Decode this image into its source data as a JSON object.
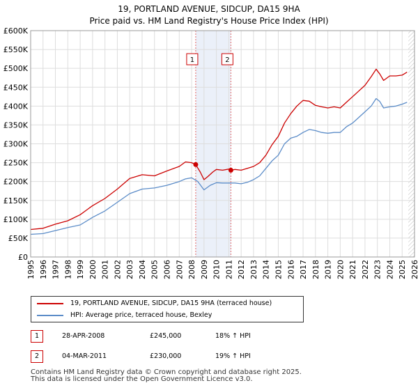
{
  "title_line1": "19, PORTLAND AVENUE, SIDCUP, DA15 9HA",
  "title_line2": "Price paid vs. HM Land Registry's House Price Index (HPI)",
  "chart_data": {
    "type": "line",
    "title": "19, PORTLAND AVENUE, SIDCUP, DA15 9HA — Price paid vs. HM Land Registry's House Price Index (HPI)",
    "xlim": [
      1995,
      2026
    ],
    "ylim": [
      0,
      600000
    ],
    "x_ticks": [
      "1995",
      "1996",
      "1997",
      "1998",
      "1999",
      "2000",
      "2001",
      "2002",
      "2003",
      "2004",
      "2005",
      "2006",
      "2007",
      "2008",
      "2009",
      "2010",
      "2011",
      "2012",
      "2013",
      "2014",
      "2015",
      "2016",
      "2017",
      "2018",
      "2019",
      "2020",
      "2021",
      "2022",
      "2023",
      "2024",
      "2025",
      "2026"
    ],
    "y_ticks": [
      {
        "value": 0,
        "label": "£0"
      },
      {
        "value": 50000,
        "label": "£50K"
      },
      {
        "value": 100000,
        "label": "£100K"
      },
      {
        "value": 150000,
        "label": "£150K"
      },
      {
        "value": 200000,
        "label": "£200K"
      },
      {
        "value": 250000,
        "label": "£250K"
      },
      {
        "value": 300000,
        "label": "£300K"
      },
      {
        "value": 350000,
        "label": "£350K"
      },
      {
        "value": 400000,
        "label": "£400K"
      },
      {
        "value": 450000,
        "label": "£450K"
      },
      {
        "value": 500000,
        "label": "£500K"
      },
      {
        "value": 550000,
        "label": "£550K"
      },
      {
        "value": 600000,
        "label": "£600K"
      }
    ],
    "series": [
      {
        "name": "19, PORTLAND AVENUE, SIDCUP, DA15 9HA (terraced house)",
        "color": "#cc0000",
        "x": [
          1995.0,
          1996.0,
          1997.0,
          1998.0,
          1999.0,
          2000.0,
          2001.0,
          2002.0,
          2003.0,
          2004.0,
          2005.0,
          2006.0,
          2007.0,
          2007.5,
          2008.0,
          2008.33,
          2008.7,
          2009.0,
          2009.3,
          2009.7,
          2010.0,
          2010.5,
          2011.0,
          2011.17,
          2011.5,
          2012.0,
          2012.5,
          2013.0,
          2013.5,
          2014.0,
          2014.5,
          2015.0,
          2015.5,
          2016.0,
          2016.5,
          2017.0,
          2017.5,
          2018.0,
          2018.5,
          2019.0,
          2019.5,
          2020.0,
          2020.5,
          2021.0,
          2021.5,
          2022.0,
          2022.5,
          2022.9,
          2023.2,
          2023.5,
          2024.0,
          2024.5,
          2025.0,
          2025.4
        ],
        "values": [
          73000,
          76000,
          87000,
          96000,
          112000,
          136000,
          155000,
          180000,
          208000,
          218000,
          215000,
          228000,
          240000,
          252000,
          250000,
          245000,
          225000,
          205000,
          213000,
          225000,
          232000,
          230000,
          233000,
          230000,
          232000,
          230000,
          235000,
          240000,
          250000,
          270000,
          298000,
          320000,
          355000,
          380000,
          400000,
          415000,
          413000,
          402000,
          398000,
          395000,
          398000,
          395000,
          410000,
          425000,
          440000,
          455000,
          478000,
          498000,
          485000,
          468000,
          480000,
          480000,
          482000,
          490000
        ]
      },
      {
        "name": "HPI: Average price, terraced house, Bexley",
        "color": "#5b8cc8",
        "x": [
          1995.0,
          1996.0,
          1997.0,
          1998.0,
          1999.0,
          2000.0,
          2001.0,
          2002.0,
          2003.0,
          2004.0,
          2005.0,
          2006.0,
          2007.0,
          2007.5,
          2008.0,
          2008.5,
          2009.0,
          2009.5,
          2010.0,
          2010.5,
          2011.0,
          2011.5,
          2012.0,
          2012.5,
          2013.0,
          2013.5,
          2014.0,
          2014.5,
          2015.0,
          2015.5,
          2016.0,
          2016.5,
          2017.0,
          2017.5,
          2018.0,
          2018.5,
          2019.0,
          2019.5,
          2020.0,
          2020.5,
          2021.0,
          2021.5,
          2022.0,
          2022.5,
          2022.9,
          2023.2,
          2023.5,
          2024.0,
          2024.5,
          2025.0,
          2025.4
        ],
        "values": [
          60000,
          62000,
          70000,
          78000,
          85000,
          105000,
          122000,
          145000,
          168000,
          180000,
          183000,
          190000,
          200000,
          207000,
          210000,
          200000,
          178000,
          190000,
          197000,
          196000,
          196000,
          196000,
          194000,
          198000,
          205000,
          215000,
          235000,
          255000,
          270000,
          300000,
          315000,
          320000,
          330000,
          338000,
          335000,
          330000,
          328000,
          330000,
          330000,
          345000,
          355000,
          370000,
          385000,
          400000,
          420000,
          412000,
          395000,
          398000,
          400000,
          405000,
          410000
        ]
      }
    ],
    "annotations": [
      {
        "label": "1",
        "x": 2008.33,
        "sale_value": 245000
      },
      {
        "label": "2",
        "x": 2011.17,
        "sale_value": 230000
      }
    ],
    "shaded_region": [
      2008.33,
      2011.17
    ],
    "future_hatch_from": 2025.5,
    "grid": true
  },
  "legend": [
    {
      "label": "19, PORTLAND AVENUE, SIDCUP, DA15 9HA (terraced house)",
      "color": "#cc0000"
    },
    {
      "label": "HPI: Average price, terraced house, Bexley",
      "color": "#5b8cc8"
    }
  ],
  "transactions": [
    {
      "num": "1",
      "date": "28-APR-2008",
      "price": "£245,000",
      "hpi": "18% ↑ HPI"
    },
    {
      "num": "2",
      "date": "04-MAR-2011",
      "price": "£230,000",
      "hpi": "19% ↑ HPI"
    }
  ],
  "footer_line1": "Contains HM Land Registry data © Crown copyright and database right 2025.",
  "footer_line2": "This data is licensed under the Open Government Licence v3.0."
}
